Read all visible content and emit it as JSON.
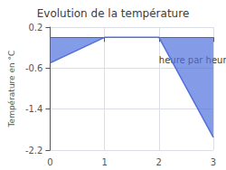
{
  "chart_data": {
    "type": "area",
    "title": "Evolution de la température",
    "y_label": "Température en °C",
    "annotations": [
      {
        "text": "heure par heure",
        "x": 2.0,
        "y": -0.35
      }
    ],
    "x": [
      0,
      1,
      2,
      3
    ],
    "values": [
      -0.5,
      0.0,
      0.0,
      -1.95
    ],
    "xlim": [
      0,
      3
    ],
    "ylim": [
      -2.2,
      0.2
    ],
    "xticks": [
      0,
      1,
      2,
      3
    ],
    "yticks": [
      0.2,
      -0.6,
      -1.4,
      -2.2
    ],
    "grid": true
  }
}
